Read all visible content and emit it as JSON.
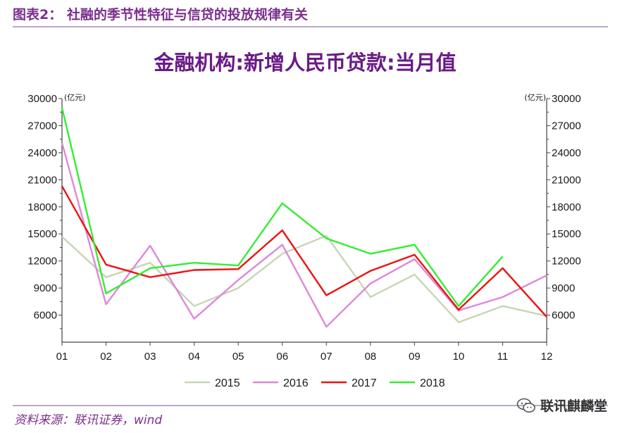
{
  "header": {
    "figure_title": "图表2： 社融的季节性特征与信贷的投放规律有关"
  },
  "footer": {
    "source": "资料来源：联讯证券，wind",
    "watermark": "联讯麒麟堂"
  },
  "colors": {
    "accent": "#7b2e8e",
    "rule": "#b9a8c6"
  },
  "chart_data": {
    "type": "line",
    "title": "金融机构:新增人民币贷款:当月值",
    "unit_left": "(亿元)",
    "unit_right": "(亿元)",
    "categories": [
      "01",
      "02",
      "03",
      "04",
      "05",
      "06",
      "07",
      "08",
      "09",
      "10",
      "11",
      "12"
    ],
    "ylim": [
      3000,
      30000
    ],
    "yticks": [
      6000,
      9000,
      12000,
      15000,
      18000,
      21000,
      24000,
      27000,
      30000
    ],
    "grid": false,
    "legend_position": "bottom",
    "series": [
      {
        "name": "2015",
        "color": "#c6d6b4",
        "values": [
          14700,
          10200,
          11800,
          7000,
          9000,
          12800,
          14800,
          8000,
          10500,
          5200,
          7000,
          5900
        ]
      },
      {
        "name": "2016",
        "color": "#dd88d8",
        "values": [
          25100,
          7200,
          13700,
          5600,
          9900,
          13800,
          4700,
          9500,
          12200,
          6500,
          8000,
          10400
        ]
      },
      {
        "name": "2017",
        "color": "#ee1111",
        "values": [
          20300,
          11600,
          10200,
          11000,
          11100,
          15400,
          8200,
          10900,
          12700,
          6600,
          11200,
          5800
        ]
      },
      {
        "name": "2018",
        "color": "#33ee33",
        "values": [
          29000,
          8400,
          11200,
          11800,
          11500,
          18400,
          14500,
          12800,
          13800,
          7000,
          12500,
          null
        ]
      }
    ]
  }
}
